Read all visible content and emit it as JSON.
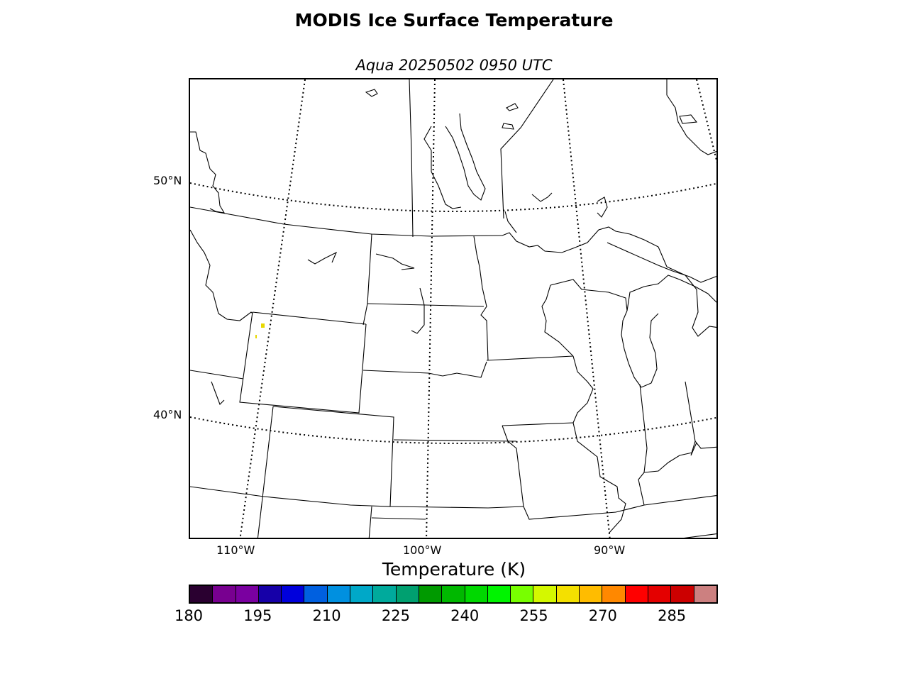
{
  "title": "MODIS Ice Surface Temperature",
  "subtitle": "Aqua 20250502 0950 UTC",
  "lat_labels": [
    "50°N",
    "40°N"
  ],
  "lon_labels": [
    "110°W",
    "100°W",
    "90°W"
  ],
  "colorbar": {
    "label": "Temperature (K)",
    "ticks": [
      "180",
      "195",
      "210",
      "225",
      "240",
      "255",
      "270",
      "285"
    ],
    "range": [
      180,
      295
    ],
    "colors": [
      "#2a0030",
      "#780090",
      "#7a00a0",
      "#1600a8",
      "#0000dc",
      "#0060e0",
      "#0090e0",
      "#00a8c8",
      "#00aa9c",
      "#00a070",
      "#009a00",
      "#00b800",
      "#00d800",
      "#00f400",
      "#78ff00",
      "#d4f800",
      "#f4e000",
      "#ffbc00",
      "#ff8800",
      "#ff0000",
      "#e40000",
      "#cc0000",
      "#cc8080"
    ]
  }
}
